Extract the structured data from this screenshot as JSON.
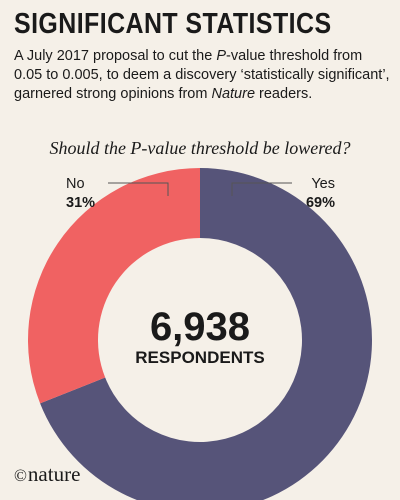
{
  "header": {
    "title": "SIGNIFICANT STATISTICS",
    "subtitle_part1": "A July 2017 proposal to cut the ",
    "subtitle_p": "P",
    "subtitle_part2": "-value threshold from 0.05 to 0.005, to deem a discovery ‘statistically significant’, garnered strong opinions from ",
    "subtitle_nature": "Nature",
    "subtitle_part3": " readers."
  },
  "chart_data": {
    "type": "pie",
    "title": "Should the P-value threshold be lowered?",
    "donut": true,
    "slices": [
      {
        "label": "Yes",
        "value": 69,
        "display": "69%",
        "color": "#565479"
      },
      {
        "label": "No",
        "value": 31,
        "display": "31%",
        "color": "#f06262"
      }
    ],
    "center_value": "6,938",
    "center_label": "RESPONDENTS"
  },
  "footer": {
    "logo_symbol": "©",
    "logo_text": "nature"
  }
}
